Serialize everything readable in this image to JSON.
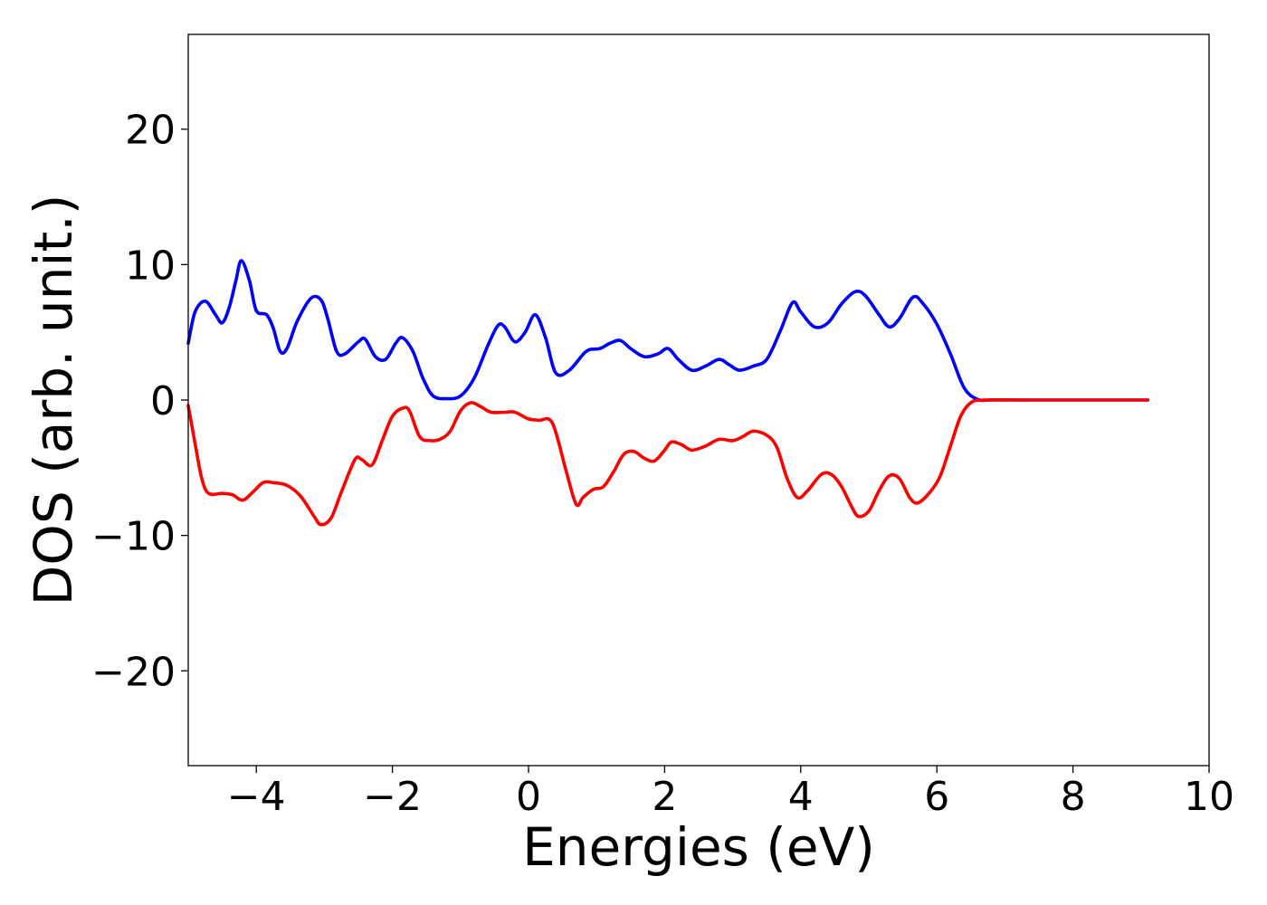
{
  "chart_data": {
    "type": "line",
    "title": "",
    "xlabel": "Energies (eV)",
    "ylabel": "DOS (arb. unit.)",
    "xlim": [
      -5,
      10
    ],
    "ylim": [
      -27,
      27
    ],
    "grid": false,
    "legend": "none",
    "x_ticks": [
      -4,
      -2,
      0,
      2,
      4,
      6,
      8,
      10
    ],
    "x_tick_labels": [
      "−4",
      "−2",
      "0",
      "2",
      "4",
      "6",
      "8",
      "10"
    ],
    "y_ticks": [
      20,
      10,
      0,
      -10,
      -20
    ],
    "y_tick_labels": [
      "20",
      "10",
      "0",
      "−10",
      "−20"
    ],
    "series": [
      {
        "color": "#0000ff",
        "points": [
          [
            -5.0,
            4.2
          ],
          [
            -4.9,
            6.5
          ],
          [
            -4.75,
            7.3
          ],
          [
            -4.6,
            6.3
          ],
          [
            -4.5,
            5.7
          ],
          [
            -4.4,
            6.8
          ],
          [
            -4.3,
            8.8
          ],
          [
            -4.22,
            10.3
          ],
          [
            -4.1,
            8.8
          ],
          [
            -4.0,
            6.6
          ],
          [
            -3.85,
            6.3
          ],
          [
            -3.75,
            5.3
          ],
          [
            -3.65,
            3.6
          ],
          [
            -3.55,
            3.8
          ],
          [
            -3.4,
            5.8
          ],
          [
            -3.2,
            7.5
          ],
          [
            -3.05,
            7.4
          ],
          [
            -2.95,
            6.0
          ],
          [
            -2.82,
            3.6
          ],
          [
            -2.7,
            3.4
          ],
          [
            -2.5,
            4.3
          ],
          [
            -2.4,
            4.5
          ],
          [
            -2.25,
            3.2
          ],
          [
            -2.1,
            3.0
          ],
          [
            -1.95,
            4.2
          ],
          [
            -1.85,
            4.6
          ],
          [
            -1.7,
            3.6
          ],
          [
            -1.55,
            1.6
          ],
          [
            -1.4,
            0.3
          ],
          [
            -1.2,
            0.1
          ],
          [
            -1.0,
            0.3
          ],
          [
            -0.8,
            1.6
          ],
          [
            -0.6,
            4.0
          ],
          [
            -0.45,
            5.5
          ],
          [
            -0.35,
            5.4
          ],
          [
            -0.2,
            4.3
          ],
          [
            -0.05,
            5.0
          ],
          [
            0.1,
            6.3
          ],
          [
            0.25,
            4.6
          ],
          [
            0.4,
            2.0
          ],
          [
            0.6,
            2.2
          ],
          [
            0.85,
            3.6
          ],
          [
            1.05,
            3.8
          ],
          [
            1.2,
            4.2
          ],
          [
            1.35,
            4.4
          ],
          [
            1.5,
            3.8
          ],
          [
            1.7,
            3.2
          ],
          [
            1.9,
            3.4
          ],
          [
            2.05,
            3.8
          ],
          [
            2.2,
            3.0
          ],
          [
            2.4,
            2.2
          ],
          [
            2.6,
            2.5
          ],
          [
            2.8,
            3.0
          ],
          [
            2.95,
            2.6
          ],
          [
            3.1,
            2.2
          ],
          [
            3.3,
            2.5
          ],
          [
            3.5,
            3.0
          ],
          [
            3.7,
            5.1
          ],
          [
            3.88,
            7.2
          ],
          [
            4.0,
            6.5
          ],
          [
            4.2,
            5.4
          ],
          [
            4.4,
            5.7
          ],
          [
            4.6,
            7.1
          ],
          [
            4.8,
            8.0
          ],
          [
            4.95,
            7.7
          ],
          [
            5.15,
            6.3
          ],
          [
            5.3,
            5.4
          ],
          [
            5.45,
            6.0
          ],
          [
            5.65,
            7.6
          ],
          [
            5.8,
            7.1
          ],
          [
            6.0,
            5.6
          ],
          [
            6.2,
            3.4
          ],
          [
            6.4,
            0.9
          ],
          [
            6.6,
            0.05
          ],
          [
            6.8,
            0.0
          ],
          [
            7.5,
            0.0
          ],
          [
            8.5,
            0.0
          ],
          [
            9.1,
            0.0
          ]
        ]
      },
      {
        "color": "#ff0000",
        "points": [
          [
            -5.0,
            -0.4
          ],
          [
            -4.9,
            -3.2
          ],
          [
            -4.8,
            -5.8
          ],
          [
            -4.7,
            -6.9
          ],
          [
            -4.5,
            -6.9
          ],
          [
            -4.35,
            -7.0
          ],
          [
            -4.2,
            -7.4
          ],
          [
            -4.05,
            -6.8
          ],
          [
            -3.9,
            -6.1
          ],
          [
            -3.75,
            -6.1
          ],
          [
            -3.55,
            -6.3
          ],
          [
            -3.35,
            -7.1
          ],
          [
            -3.15,
            -8.6
          ],
          [
            -3.05,
            -9.2
          ],
          [
            -2.9,
            -8.7
          ],
          [
            -2.75,
            -6.8
          ],
          [
            -2.55,
            -4.4
          ],
          [
            -2.45,
            -4.4
          ],
          [
            -2.3,
            -4.8
          ],
          [
            -2.15,
            -3.0
          ],
          [
            -2.0,
            -1.2
          ],
          [
            -1.85,
            -0.6
          ],
          [
            -1.75,
            -0.8
          ],
          [
            -1.6,
            -2.7
          ],
          [
            -1.45,
            -3.0
          ],
          [
            -1.3,
            -2.9
          ],
          [
            -1.15,
            -2.3
          ],
          [
            -1.0,
            -0.8
          ],
          [
            -0.85,
            -0.2
          ],
          [
            -0.7,
            -0.5
          ],
          [
            -0.55,
            -0.9
          ],
          [
            -0.35,
            -0.9
          ],
          [
            -0.2,
            -0.9
          ],
          [
            0.0,
            -1.4
          ],
          [
            0.15,
            -1.5
          ],
          [
            0.35,
            -1.7
          ],
          [
            0.55,
            -5.2
          ],
          [
            0.7,
            -7.7
          ],
          [
            0.8,
            -7.2
          ],
          [
            0.95,
            -6.6
          ],
          [
            1.1,
            -6.4
          ],
          [
            1.25,
            -5.3
          ],
          [
            1.4,
            -4.0
          ],
          [
            1.55,
            -3.8
          ],
          [
            1.7,
            -4.3
          ],
          [
            1.85,
            -4.5
          ],
          [
            2.0,
            -3.7
          ],
          [
            2.1,
            -3.1
          ],
          [
            2.25,
            -3.3
          ],
          [
            2.4,
            -3.7
          ],
          [
            2.6,
            -3.4
          ],
          [
            2.8,
            -2.9
          ],
          [
            3.0,
            -3.0
          ],
          [
            3.15,
            -2.7
          ],
          [
            3.3,
            -2.3
          ],
          [
            3.5,
            -2.6
          ],
          [
            3.65,
            -3.5
          ],
          [
            3.8,
            -5.8
          ],
          [
            3.95,
            -7.2
          ],
          [
            4.1,
            -6.7
          ],
          [
            4.3,
            -5.5
          ],
          [
            4.45,
            -5.5
          ],
          [
            4.6,
            -6.4
          ],
          [
            4.75,
            -7.9
          ],
          [
            4.85,
            -8.6
          ],
          [
            5.0,
            -8.2
          ],
          [
            5.15,
            -6.7
          ],
          [
            5.3,
            -5.6
          ],
          [
            5.45,
            -5.8
          ],
          [
            5.6,
            -7.2
          ],
          [
            5.72,
            -7.6
          ],
          [
            5.9,
            -6.8
          ],
          [
            6.05,
            -5.6
          ],
          [
            6.2,
            -3.4
          ],
          [
            6.35,
            -1.2
          ],
          [
            6.5,
            -0.2
          ],
          [
            6.7,
            0.0
          ],
          [
            7.5,
            0.0
          ],
          [
            8.5,
            0.0
          ],
          [
            9.1,
            0.0
          ]
        ]
      }
    ]
  }
}
